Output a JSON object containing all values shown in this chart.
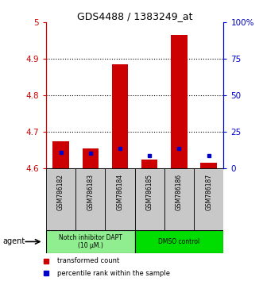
{
  "title": "GDS4488 / 1383249_at",
  "samples": [
    "GSM786182",
    "GSM786183",
    "GSM786184",
    "GSM786185",
    "GSM786186",
    "GSM786187"
  ],
  "red_values": [
    4.675,
    4.655,
    4.885,
    4.625,
    4.965,
    4.615
  ],
  "blue_values": [
    4.645,
    4.642,
    4.655,
    4.635,
    4.655,
    4.635
  ],
  "ylim_left": [
    4.6,
    5.0
  ],
  "ylim_right": [
    0,
    100
  ],
  "yticks_left": [
    4.6,
    4.7,
    4.8,
    4.9,
    5.0
  ],
  "yticks_right": [
    0,
    25,
    50,
    75,
    100
  ],
  "ytick_labels_left": [
    "4.6",
    "4.7",
    "4.8",
    "4.9",
    "5"
  ],
  "ytick_labels_right": [
    "0",
    "25",
    "50",
    "75",
    "100%"
  ],
  "groups": [
    {
      "label": "Notch inhibitor DAPT\n(10 μM.)",
      "color": "#90EE90",
      "span": [
        0,
        3
      ]
    },
    {
      "label": "DMSO control",
      "color": "#00DD00",
      "span": [
        3,
        6
      ]
    }
  ],
  "bar_color": "#CC0000",
  "blue_color": "#0000CC",
  "bar_width": 0.55,
  "agent_label": "agent",
  "legend_red": "transformed count",
  "legend_blue": "percentile rank within the sample",
  "left_axis_color": "#CC0000",
  "right_axis_color": "#0000CC",
  "xtick_bg": "#C8C8C8",
  "grid_ticks": [
    4.7,
    4.8,
    4.9
  ]
}
